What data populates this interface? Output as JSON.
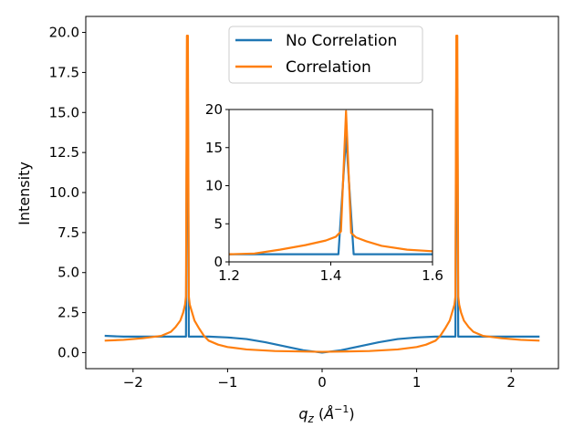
{
  "chart_data": [
    {
      "type": "line",
      "title": "",
      "xlabel_main": "q",
      "xlabel_sub": "z",
      "xlabel_unit_open": " (",
      "xlabel_unit_A": "Å",
      "xlabel_unit_exp": "−1",
      "xlabel_unit_close": ")",
      "ylabel": "Intensity",
      "xlim": [
        -2.5,
        2.5
      ],
      "ylim": [
        -1,
        21
      ],
      "xticks": [
        -2,
        -1,
        0,
        1,
        2
      ],
      "xtick_labels": [
        "−2",
        "−1",
        "0",
        "1",
        "2"
      ],
      "yticks": [
        0,
        2.5,
        5,
        7.5,
        10,
        12.5,
        15,
        17.5,
        20
      ],
      "ytick_labels": [
        "0.0",
        "2.5",
        "5.0",
        "7.5",
        "10.0",
        "12.5",
        "15.0",
        "17.5",
        "20.0"
      ],
      "legend": "top-center",
      "grid": false,
      "series": [
        {
          "name": "No Correlation",
          "color": "#1f77b4",
          "x": [
            -2.3,
            -2.1,
            -1.9,
            -1.7,
            -1.6,
            -1.5,
            -1.45,
            -1.44,
            -1.43,
            -1.42,
            -1.41,
            -1.4,
            -1.3,
            -1.2,
            -1.0,
            -0.8,
            -0.6,
            -0.4,
            -0.2,
            0.0,
            0.2,
            0.4,
            0.6,
            0.8,
            1.0,
            1.2,
            1.3,
            1.4,
            1.41,
            1.42,
            1.43,
            1.44,
            1.45,
            1.5,
            1.6,
            1.7,
            1.9,
            2.1,
            2.3
          ],
          "y": [
            1.05,
            1.0,
            1.0,
            1.0,
            1.0,
            1.0,
            1.0,
            1.0,
            16.5,
            16.5,
            1.0,
            1.0,
            1.0,
            1.0,
            0.95,
            0.85,
            0.65,
            0.4,
            0.15,
            0.0,
            0.15,
            0.4,
            0.65,
            0.85,
            0.95,
            1.0,
            1.0,
            1.0,
            1.0,
            16.5,
            16.5,
            1.0,
            1.0,
            1.0,
            1.0,
            1.0,
            1.0,
            1.0,
            1.0
          ]
        },
        {
          "name": "Correlation",
          "color": "#ff7f0e",
          "x": [
            -2.3,
            -2.1,
            -1.9,
            -1.7,
            -1.6,
            -1.55,
            -1.5,
            -1.47,
            -1.45,
            -1.44,
            -1.43,
            -1.42,
            -1.41,
            -1.4,
            -1.38,
            -1.35,
            -1.3,
            -1.25,
            -1.2,
            -1.1,
            -1.0,
            -0.8,
            -0.5,
            0.0,
            0.5,
            0.8,
            1.0,
            1.1,
            1.2,
            1.25,
            1.3,
            1.35,
            1.38,
            1.4,
            1.41,
            1.42,
            1.43,
            1.44,
            1.45,
            1.47,
            1.5,
            1.55,
            1.6,
            1.7,
            1.9,
            2.1,
            2.3
          ],
          "y": [
            0.75,
            0.8,
            0.9,
            1.05,
            1.3,
            1.6,
            2.0,
            2.5,
            3.0,
            3.5,
            19.8,
            19.8,
            3.5,
            3.0,
            2.6,
            2.0,
            1.5,
            1.05,
            0.75,
            0.5,
            0.35,
            0.2,
            0.1,
            0.05,
            0.1,
            0.2,
            0.35,
            0.5,
            0.75,
            1.05,
            1.5,
            2.0,
            2.6,
            3.0,
            3.5,
            19.8,
            19.8,
            3.5,
            3.0,
            2.5,
            2.0,
            1.6,
            1.3,
            1.05,
            0.9,
            0.8,
            0.75
          ]
        }
      ]
    },
    {
      "type": "line",
      "title": "",
      "xlim": [
        1.2,
        1.6
      ],
      "ylim": [
        0,
        20
      ],
      "xticks": [
        1.2,
        1.4,
        1.6
      ],
      "xtick_labels": [
        "1.2",
        "1.4",
        "1.6"
      ],
      "yticks": [
        0,
        5,
        10,
        15,
        20
      ],
      "ytick_labels": [
        "0",
        "5",
        "10",
        "15",
        "20"
      ],
      "series": [
        {
          "name": "No Correlation",
          "color": "#1f77b4",
          "x": [
            1.2,
            1.25,
            1.3,
            1.35,
            1.4,
            1.415,
            1.43,
            1.445,
            1.46,
            1.5,
            1.55,
            1.6
          ],
          "y": [
            1.0,
            1.0,
            1.0,
            1.0,
            1.0,
            1.0,
            16.5,
            1.0,
            1.0,
            1.0,
            1.0,
            1.0
          ]
        },
        {
          "name": "Correlation",
          "color": "#ff7f0e",
          "x": [
            1.2,
            1.25,
            1.3,
            1.35,
            1.39,
            1.41,
            1.42,
            1.43,
            1.44,
            1.45,
            1.47,
            1.5,
            1.55,
            1.6
          ],
          "y": [
            1.0,
            1.1,
            1.6,
            2.2,
            2.8,
            3.3,
            4.0,
            19.8,
            3.8,
            3.2,
            2.7,
            2.1,
            1.6,
            1.4
          ]
        }
      ]
    }
  ]
}
